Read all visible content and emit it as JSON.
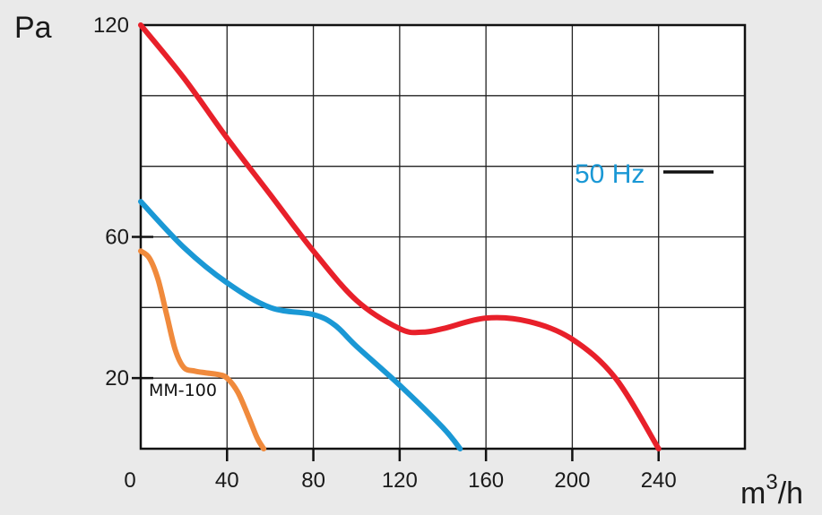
{
  "chart_data": {
    "type": "line",
    "ylabel": "Pa",
    "xlabel_base": "m",
    "xlabel_sup": "3",
    "xlabel_tail": "/h",
    "x_ticks": [
      0,
      40,
      80,
      120,
      160,
      200,
      240
    ],
    "y_ticks": [
      20,
      60,
      120
    ],
    "xlim": [
      0,
      280
    ],
    "ylim": [
      0,
      120
    ],
    "grid": true,
    "legend": {
      "label": "50 Hz",
      "color": "#1a98d5",
      "line_color": "#111111"
    },
    "annotation": {
      "text": "MM-100"
    },
    "series": [
      {
        "color": "#e8202a",
        "x": [
          0,
          20,
          40,
          60,
          80,
          100,
          120,
          130,
          140,
          160,
          180,
          200,
          220,
          240
        ],
        "y": [
          120,
          105,
          88,
          72,
          56,
          42,
          34,
          33,
          34,
          37,
          36,
          31,
          20,
          0
        ]
      },
      {
        "color": "#1a98d5",
        "x": [
          0,
          20,
          40,
          60,
          80,
          90,
          100,
          120,
          140,
          148
        ],
        "y": [
          70,
          57,
          47,
          40,
          38,
          35,
          29,
          18,
          6,
          0
        ]
      },
      {
        "annotation_ref": "MM-100",
        "color": "#f08a3c",
        "x": [
          0,
          4,
          8,
          12,
          16,
          20,
          25,
          30,
          36,
          40,
          45,
          50,
          54,
          57
        ],
        "y": [
          56,
          54,
          48,
          38,
          28,
          23,
          22,
          21.5,
          21,
          20,
          16,
          9,
          3,
          0
        ]
      }
    ]
  }
}
